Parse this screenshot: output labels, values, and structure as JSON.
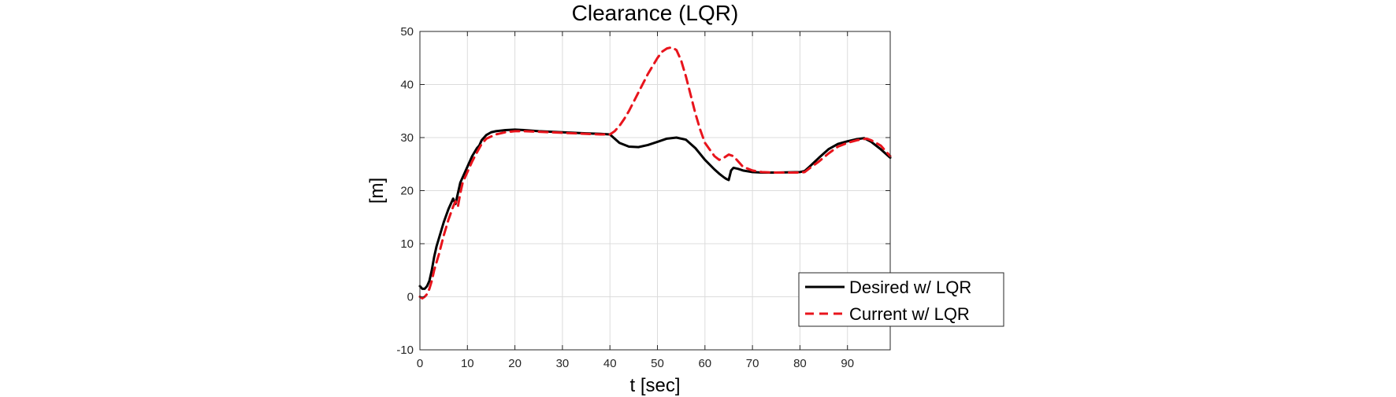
{
  "chart_data": {
    "type": "line",
    "title": "Clearance (LQR)",
    "xlabel": "t [sec]",
    "ylabel": "[m]",
    "xlim": [
      0,
      99
    ],
    "ylim": [
      -10,
      50
    ],
    "x_ticks": [
      0,
      10,
      20,
      30,
      40,
      50,
      60,
      70,
      80,
      90
    ],
    "y_ticks": [
      -10,
      0,
      10,
      20,
      30,
      40,
      50
    ],
    "grid": true,
    "legend_position": "bottom-right",
    "series": [
      {
        "name": "Desired w/ LQR",
        "color": "#000000",
        "style": "solid",
        "x": [
          0,
          0.5,
          1,
          1.5,
          2,
          2.5,
          3,
          3.5,
          4,
          5,
          6,
          7,
          7.5,
          8,
          8.5,
          9,
          10,
          11,
          12,
          12.5,
          13,
          14,
          15,
          16,
          18,
          20,
          22,
          25,
          30,
          35,
          38,
          40,
          42,
          44,
          46,
          48,
          50,
          52,
          54,
          56,
          58,
          60,
          62,
          63,
          64,
          64.5,
          65,
          65.5,
          66,
          67,
          68,
          70,
          72,
          75,
          80,
          81,
          82,
          84,
          86,
          88,
          90,
          92,
          93.5,
          95,
          97,
          99
        ],
        "y": [
          2,
          1.5,
          1.5,
          2,
          3,
          5,
          7.5,
          9.5,
          11,
          14,
          16.5,
          18.5,
          17.5,
          19.5,
          21.5,
          22.5,
          24.5,
          26.5,
          28,
          28.5,
          29.5,
          30.5,
          31,
          31.2,
          31.4,
          31.5,
          31.4,
          31.2,
          31,
          30.8,
          30.7,
          30.6,
          29,
          28.3,
          28.2,
          28.6,
          29.2,
          29.8,
          30,
          29.6,
          28,
          25.8,
          24,
          23.2,
          22.5,
          22.2,
          22,
          23.8,
          24.3,
          24.1,
          23.8,
          23.5,
          23.4,
          23.4,
          23.5,
          23.7,
          24.5,
          26.2,
          27.8,
          28.8,
          29.3,
          29.7,
          29.9,
          29.2,
          27.8,
          26.2
        ]
      },
      {
        "name": "Current w/ LQR",
        "color": "#e8141c",
        "style": "dashed",
        "x": [
          0,
          0.5,
          1,
          1.5,
          2,
          2.5,
          3,
          4,
          5,
          6,
          7,
          7.5,
          8,
          8.5,
          9,
          10,
          11,
          12,
          13,
          14,
          16,
          18,
          20,
          22,
          25,
          30,
          35,
          38,
          40,
          41,
          42,
          43,
          44,
          46,
          48,
          50,
          51,
          52,
          53,
          54,
          55,
          56,
          57,
          58,
          59,
          60,
          62,
          63,
          64,
          65,
          66,
          67,
          68,
          70,
          72,
          75,
          80,
          81,
          82,
          84,
          86,
          88,
          90,
          92,
          94,
          95,
          97,
          99
        ],
        "y": [
          0,
          -0.3,
          0,
          0.5,
          1.5,
          3,
          5,
          8,
          11.5,
          14.5,
          17,
          18,
          17,
          19.5,
          21.5,
          23.5,
          25.5,
          27.2,
          28.8,
          29.8,
          30.6,
          31,
          31.2,
          31.2,
          31.1,
          30.9,
          30.7,
          30.6,
          30.6,
          31.2,
          32.2,
          33.5,
          35,
          38.5,
          42,
          45,
          46.2,
          46.8,
          47,
          46.5,
          44.5,
          41.5,
          38,
          34.5,
          31.5,
          29,
          26.5,
          25.8,
          26.2,
          26.8,
          26.5,
          25.5,
          24.5,
          23.8,
          23.5,
          23.4,
          23.4,
          23.5,
          24.2,
          25.5,
          27,
          28.3,
          29,
          29.5,
          29.8,
          29.5,
          28.5,
          26.5
        ]
      }
    ]
  }
}
